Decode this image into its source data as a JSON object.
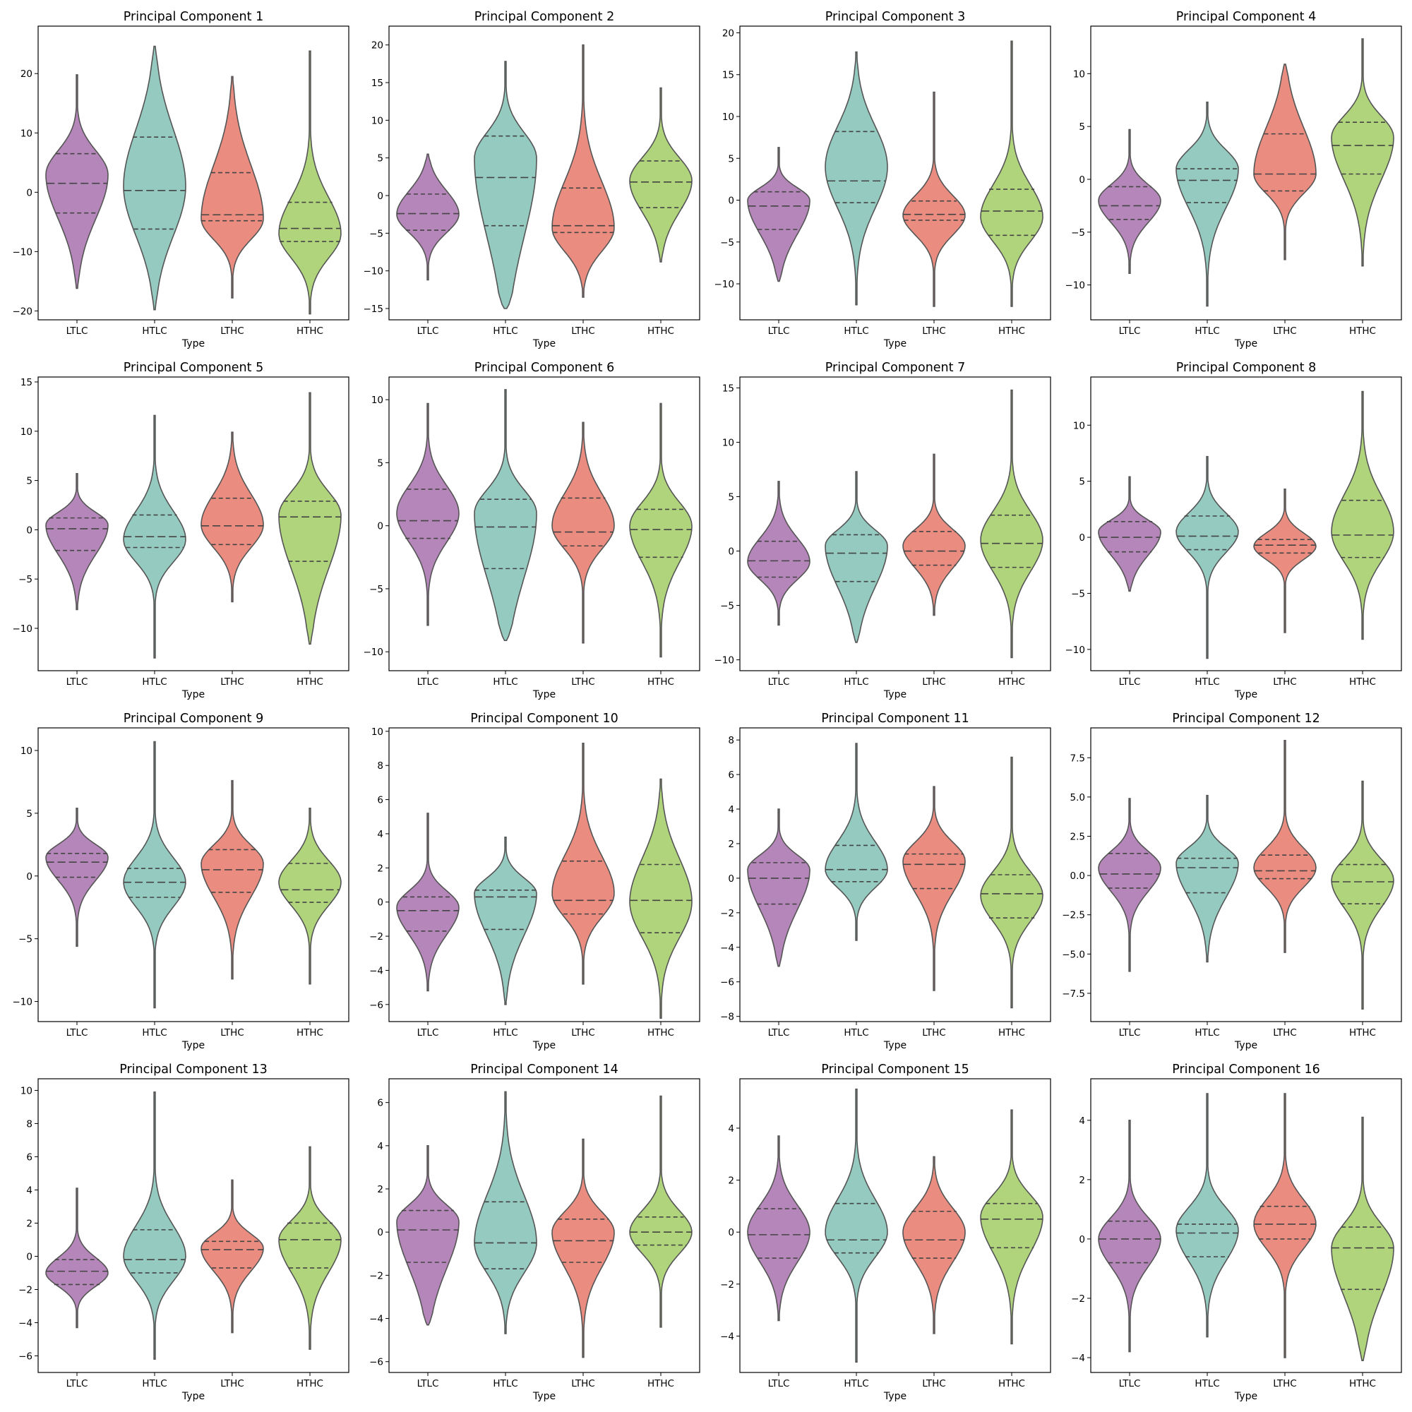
{
  "chart_data": {
    "type": "violin",
    "xlabel": "Type",
    "categories": [
      "LTLC",
      "HTLC",
      "LTHC",
      "HTHC"
    ],
    "colors": {
      "LTLC": "#b586b9",
      "HTLC": "#94cac0",
      "LTHC": "#ea8c80",
      "HTHC": "#b0d47b"
    },
    "inner": "quartile",
    "panels": [
      {
        "title": "Principal Component 1",
        "ylim": [
          -21.5,
          28
        ],
        "yticks": [
          -20,
          -10,
          0,
          10,
          20
        ],
        "violins": [
          {
            "min": -16.2,
            "q1": -3.5,
            "median": 1.5,
            "q3": 6.5,
            "max": 19.8,
            "mode": 3.0
          },
          {
            "min": -19.8,
            "q1": -6.2,
            "median": 0.3,
            "q3": 9.3,
            "max": 24.6,
            "mode": 1.0
          },
          {
            "min": -17.8,
            "q1": -4.8,
            "median": -3.8,
            "q3": 3.3,
            "max": 19.5,
            "mode": -4.5
          },
          {
            "min": -20.5,
            "q1": -8.3,
            "median": -6.1,
            "q3": -1.7,
            "max": 23.8,
            "mode": -7.0
          }
        ]
      },
      {
        "title": "Principal Component 2",
        "ylim": [
          -16.5,
          22.5
        ],
        "yticks": [
          -15,
          -10,
          -5,
          0,
          5,
          10,
          15,
          20
        ],
        "violins": [
          {
            "min": -11.2,
            "q1": -4.6,
            "median": -2.4,
            "q3": 0.2,
            "max": 5.5,
            "mode": -2.5
          },
          {
            "min": -15.0,
            "q1": -4.0,
            "median": 2.4,
            "q3": 7.9,
            "max": 17.8,
            "mode": 5.0
          },
          {
            "min": -13.5,
            "q1": -4.9,
            "median": -4.0,
            "q3": 1.0,
            "max": 20.0,
            "mode": -4.3
          },
          {
            "min": -8.8,
            "q1": -1.6,
            "median": 1.8,
            "q3": 4.6,
            "max": 14.3,
            "mode": 2.0
          }
        ]
      },
      {
        "title": "Principal Component 3",
        "ylim": [
          -14.3,
          20.8
        ],
        "yticks": [
          -10,
          -5,
          0,
          5,
          10,
          15,
          20
        ],
        "violins": [
          {
            "min": -9.7,
            "q1": -3.5,
            "median": -0.7,
            "q3": 1.0,
            "max": 6.3,
            "mode": 0.0
          },
          {
            "min": -12.5,
            "q1": -0.3,
            "median": 2.3,
            "q3": 8.2,
            "max": 17.7,
            "mode": 4.0
          },
          {
            "min": -12.7,
            "q1": -2.4,
            "median": -1.7,
            "q3": -0.1,
            "max": 12.9,
            "mode": -1.8
          },
          {
            "min": -12.7,
            "q1": -4.2,
            "median": -1.3,
            "q3": 1.3,
            "max": 19.0,
            "mode": -2.0
          }
        ]
      },
      {
        "title": "Principal Component 4",
        "ylim": [
          -13.3,
          14.5
        ],
        "yticks": [
          -10,
          -5,
          0,
          5,
          10
        ],
        "violins": [
          {
            "min": -8.9,
            "q1": -3.8,
            "median": -2.5,
            "q3": -0.7,
            "max": 4.7,
            "mode": -2.0
          },
          {
            "min": -12.0,
            "q1": -2.2,
            "median": -0.1,
            "q3": 1.0,
            "max": 7.3,
            "mode": 1.0
          },
          {
            "min": -7.6,
            "q1": -1.1,
            "median": 0.5,
            "q3": 4.3,
            "max": 10.9,
            "mode": 0.5
          },
          {
            "min": -8.2,
            "q1": 0.5,
            "median": 3.2,
            "q3": 5.4,
            "max": 13.3,
            "mode": 4.0
          }
        ]
      },
      {
        "title": "Principal Component 5",
        "ylim": [
          -14.3,
          15.5
        ],
        "yticks": [
          -10,
          -5,
          0,
          5,
          10,
          15
        ],
        "violins": [
          {
            "min": -8.1,
            "q1": -2.1,
            "median": 0.1,
            "q3": 1.2,
            "max": 5.7,
            "mode": 0.5
          },
          {
            "min": -13.0,
            "q1": -1.8,
            "median": -0.7,
            "q3": 1.5,
            "max": 11.6,
            "mode": -1.0
          },
          {
            "min": -7.3,
            "q1": -1.5,
            "median": 0.4,
            "q3": 3.2,
            "max": 9.9,
            "mode": 0.5
          },
          {
            "min": -11.6,
            "q1": -3.2,
            "median": 1.3,
            "q3": 2.9,
            "max": 13.9,
            "mode": 1.5
          }
        ]
      },
      {
        "title": "Principal Component 6",
        "ylim": [
          -11.5,
          11.8
        ],
        "yticks": [
          -10,
          -5,
          0,
          5,
          10
        ],
        "violins": [
          {
            "min": -7.9,
            "q1": -1.0,
            "median": 0.4,
            "q3": 2.9,
            "max": 9.7,
            "mode": 1.0
          },
          {
            "min": -9.1,
            "q1": -3.4,
            "median": -0.1,
            "q3": 2.1,
            "max": 10.8,
            "mode": 1.0
          },
          {
            "min": -9.3,
            "q1": -1.6,
            "median": -0.5,
            "q3": 2.2,
            "max": 8.2,
            "mode": 0.0
          },
          {
            "min": -10.4,
            "q1": -2.5,
            "median": -0.3,
            "q3": 1.3,
            "max": 9.7,
            "mode": 0.0
          }
        ]
      },
      {
        "title": "Principal Component 7",
        "ylim": [
          -11.0,
          16.0
        ],
        "yticks": [
          -10,
          -5,
          0,
          5,
          10,
          15
        ],
        "violins": [
          {
            "min": -6.8,
            "q1": -2.4,
            "median": -0.9,
            "q3": 0.9,
            "max": 6.4,
            "mode": -1.0
          },
          {
            "min": -8.4,
            "q1": -2.8,
            "median": -0.2,
            "q3": 1.5,
            "max": 7.3,
            "mode": 0.5
          },
          {
            "min": -5.9,
            "q1": -1.3,
            "median": 0.0,
            "q3": 1.8,
            "max": 8.9,
            "mode": 0.5
          },
          {
            "min": -9.8,
            "q1": -1.5,
            "median": 0.7,
            "q3": 3.3,
            "max": 14.8,
            "mode": 1.0
          }
        ]
      },
      {
        "title": "Principal Component 8",
        "ylim": [
          -11.9,
          14.3
        ],
        "yticks": [
          -10,
          -5,
          0,
          5,
          10
        ],
        "violins": [
          {
            "min": -4.8,
            "q1": -1.3,
            "median": 0.0,
            "q3": 1.4,
            "max": 5.4,
            "mode": 0.5
          },
          {
            "min": -10.8,
            "q1": -1.1,
            "median": 0.1,
            "q3": 1.9,
            "max": 7.2,
            "mode": 0.5
          },
          {
            "min": -8.5,
            "q1": -1.4,
            "median": -0.7,
            "q3": -0.2,
            "max": 4.3,
            "mode": -0.8
          },
          {
            "min": -9.1,
            "q1": -1.8,
            "median": 0.2,
            "q3": 3.3,
            "max": 13.0,
            "mode": 0.5
          }
        ]
      },
      {
        "title": "Principal Component 9",
        "ylim": [
          -11.6,
          11.8
        ],
        "yticks": [
          -10,
          -5,
          0,
          5,
          10
        ],
        "violins": [
          {
            "min": -5.6,
            "q1": -0.1,
            "median": 1.1,
            "q3": 1.8,
            "max": 5.4,
            "mode": 1.5
          },
          {
            "min": -10.5,
            "q1": -1.7,
            "median": -0.5,
            "q3": 0.6,
            "max": 10.7,
            "mode": -0.5
          },
          {
            "min": -8.2,
            "q1": -1.3,
            "median": 0.5,
            "q3": 2.1,
            "max": 7.6,
            "mode": 1.0
          },
          {
            "min": -8.6,
            "q1": -2.1,
            "median": -1.1,
            "q3": 1.0,
            "max": 5.4,
            "mode": -0.5
          }
        ]
      },
      {
        "title": "Principal Component 10",
        "ylim": [
          -7.0,
          10.2
        ],
        "yticks": [
          -6,
          -4,
          -2,
          0,
          2,
          4,
          6,
          8,
          10
        ],
        "violins": [
          {
            "min": -5.2,
            "q1": -1.7,
            "median": -0.5,
            "q3": 0.3,
            "max": 5.2,
            "mode": -0.3
          },
          {
            "min": -6.0,
            "q1": -1.6,
            "median": 0.3,
            "q3": 0.7,
            "max": 3.8,
            "mode": 0.5
          },
          {
            "min": -4.8,
            "q1": -0.7,
            "median": 0.1,
            "q3": 2.4,
            "max": 9.3,
            "mode": 0.5
          },
          {
            "min": -6.8,
            "q1": -1.8,
            "median": 0.1,
            "q3": 2.2,
            "max": 7.2,
            "mode": 0.0
          }
        ]
      },
      {
        "title": "Principal Component 11",
        "ylim": [
          -8.3,
          8.7
        ],
        "yticks": [
          -8,
          -6,
          -4,
          -2,
          0,
          2,
          4,
          6,
          8
        ],
        "violins": [
          {
            "min": -5.1,
            "q1": -1.5,
            "median": 0.0,
            "q3": 0.9,
            "max": 4.0,
            "mode": 0.5
          },
          {
            "min": -3.6,
            "q1": -0.2,
            "median": 0.5,
            "q3": 1.9,
            "max": 7.8,
            "mode": 0.5
          },
          {
            "min": -6.5,
            "q1": -0.6,
            "median": 0.8,
            "q3": 1.4,
            "max": 5.3,
            "mode": 1.0
          },
          {
            "min": -7.5,
            "q1": -2.3,
            "median": -0.9,
            "q3": 0.2,
            "max": 7.0,
            "mode": -1.0
          }
        ]
      },
      {
        "title": "Principal Component 12",
        "ylim": [
          -9.3,
          9.4
        ],
        "yticks": [
          -7.5,
          -5.0,
          -2.5,
          0.0,
          2.5,
          5.0,
          7.5
        ],
        "violins": [
          {
            "min": -6.1,
            "q1": -0.8,
            "median": 0.1,
            "q3": 1.4,
            "max": 4.9,
            "mode": 0.5
          },
          {
            "min": -5.5,
            "q1": -1.1,
            "median": 0.5,
            "q3": 1.1,
            "max": 5.1,
            "mode": 0.8
          },
          {
            "min": -4.9,
            "q1": -0.2,
            "median": 0.3,
            "q3": 1.3,
            "max": 8.6,
            "mode": 0.5
          },
          {
            "min": -8.5,
            "q1": -1.8,
            "median": -0.4,
            "q3": 0.7,
            "max": 6.0,
            "mode": -0.3
          }
        ]
      },
      {
        "title": "Principal Component 13",
        "ylim": [
          -7.0,
          10.7
        ],
        "yticks": [
          -6,
          -4,
          -2,
          0,
          2,
          4,
          6,
          8,
          10
        ],
        "violins": [
          {
            "min": -4.3,
            "q1": -1.7,
            "median": -0.9,
            "q3": -0.2,
            "max": 4.1,
            "mode": -1.0
          },
          {
            "min": -6.2,
            "q1": -1.0,
            "median": -0.2,
            "q3": 1.6,
            "max": 9.9,
            "mode": 0.0
          },
          {
            "min": -4.6,
            "q1": -0.7,
            "median": 0.4,
            "q3": 0.9,
            "max": 4.6,
            "mode": 0.5
          },
          {
            "min": -5.6,
            "q1": -0.7,
            "median": 1.0,
            "q3": 2.0,
            "max": 6.6,
            "mode": 1.0
          }
        ]
      },
      {
        "title": "Principal Component 14",
        "ylim": [
          -6.5,
          7.1
        ],
        "yticks": [
          -6,
          -4,
          -2,
          0,
          2,
          4,
          6
        ],
        "violins": [
          {
            "min": -4.3,
            "q1": -1.4,
            "median": 0.1,
            "q3": 1.0,
            "max": 4.0,
            "mode": 0.5
          },
          {
            "min": -4.7,
            "q1": -1.7,
            "median": -0.5,
            "q3": 1.4,
            "max": 6.5,
            "mode": -0.5
          },
          {
            "min": -5.8,
            "q1": -1.4,
            "median": -0.4,
            "q3": 0.6,
            "max": 4.3,
            "mode": 0.0
          },
          {
            "min": -4.4,
            "q1": -0.6,
            "median": 0.0,
            "q3": 0.7,
            "max": 6.3,
            "mode": 0.0
          }
        ]
      },
      {
        "title": "Principal Component 15",
        "ylim": [
          -5.4,
          5.9
        ],
        "yticks": [
          -4,
          -2,
          0,
          2,
          4
        ],
        "violins": [
          {
            "min": -3.4,
            "q1": -1.0,
            "median": -0.1,
            "q3": 0.9,
            "max": 3.7,
            "mode": 0.0
          },
          {
            "min": -5.0,
            "q1": -0.8,
            "median": -0.3,
            "q3": 1.1,
            "max": 5.5,
            "mode": 0.0
          },
          {
            "min": -3.9,
            "q1": -1.0,
            "median": -0.3,
            "q3": 0.8,
            "max": 2.9,
            "mode": 0.0
          },
          {
            "min": -4.3,
            "q1": -0.6,
            "median": 0.5,
            "q3": 1.1,
            "max": 4.7,
            "mode": 0.6
          }
        ]
      },
      {
        "title": "Principal Component 16",
        "ylim": [
          -4.5,
          5.4
        ],
        "yticks": [
          -4,
          -2,
          0,
          2,
          4
        ],
        "violins": [
          {
            "min": -3.8,
            "q1": -0.8,
            "median": 0.0,
            "q3": 0.6,
            "max": 4.0,
            "mode": 0.0
          },
          {
            "min": -3.3,
            "q1": -0.6,
            "median": 0.2,
            "q3": 0.5,
            "max": 4.9,
            "mode": 0.3
          },
          {
            "min": -4.0,
            "q1": 0.0,
            "median": 0.5,
            "q3": 1.1,
            "max": 4.9,
            "mode": 0.5
          },
          {
            "min": -4.1,
            "q1": -1.7,
            "median": -0.3,
            "q3": 0.4,
            "max": 4.1,
            "mode": -0.3
          }
        ]
      }
    ]
  }
}
